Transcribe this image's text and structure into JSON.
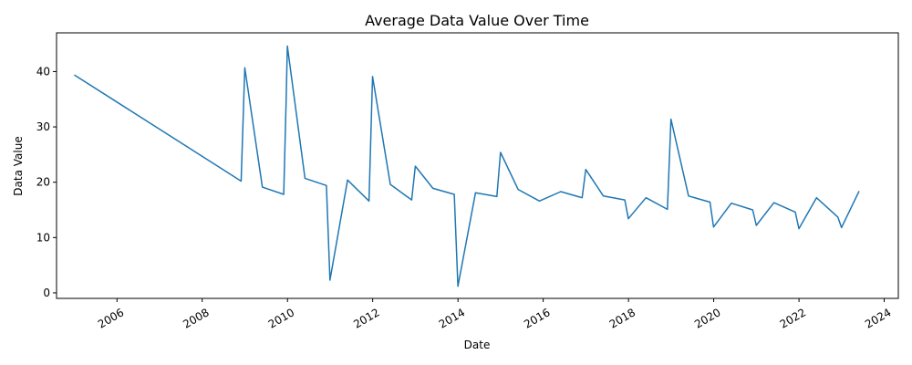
{
  "chart_data": {
    "type": "line",
    "title": "Average Data Value Over Time",
    "xlabel": "Date",
    "ylabel": "Data Value",
    "x_ticks": [
      "2006",
      "2008",
      "2010",
      "2012",
      "2014",
      "2016",
      "2018",
      "2020",
      "2022",
      "2024"
    ],
    "y_ticks": [
      0,
      10,
      20,
      30,
      40
    ],
    "xlim": [
      "2004-08-01",
      "2024-05-01"
    ],
    "ylim": [
      -1,
      47
    ],
    "grid": false,
    "line_color": "#1f77b4",
    "series": [
      {
        "x": [
          "2004-12-31",
          "2008-11-30",
          "2008-12-31",
          "2009-05-31",
          "2009-11-30",
          "2009-12-20",
          "2009-12-31",
          "2010-05-31",
          "2010-11-30",
          "2010-12-31",
          "2011-05-31",
          "2011-11-30",
          "2011-12-31",
          "2012-05-31",
          "2012-11-30",
          "2012-12-31",
          "2013-05-31",
          "2013-11-30",
          "2013-12-31",
          "2014-05-31",
          "2014-11-30",
          "2014-12-31",
          "2015-05-31",
          "2015-11-30",
          "2016-05-31",
          "2016-11-30",
          "2016-12-31",
          "2017-05-31",
          "2017-11-30",
          "2017-12-31",
          "2018-05-31",
          "2018-11-30",
          "2018-12-31",
          "2019-05-31",
          "2019-11-30",
          "2019-12-31",
          "2020-05-31",
          "2020-11-30",
          "2020-12-31",
          "2021-05-31",
          "2021-11-30",
          "2021-12-31",
          "2022-05-31",
          "2022-11-30",
          "2022-12-31",
          "2023-05-31"
        ],
        "y": [
          39.4,
          20.2,
          40.7,
          19.1,
          17.8,
          34.5,
          44.6,
          20.7,
          19.4,
          2.3,
          20.4,
          16.6,
          39.1,
          19.6,
          16.8,
          22.9,
          18.9,
          17.8,
          1.2,
          18.1,
          17.4,
          25.4,
          18.7,
          16.6,
          18.3,
          17.2,
          22.3,
          17.5,
          16.8,
          13.4,
          17.2,
          15.1,
          31.4,
          17.5,
          16.4,
          11.9,
          16.2,
          15.0,
          12.2,
          16.3,
          14.6,
          11.6,
          17.2,
          13.7,
          11.8,
          18.4
        ]
      }
    ]
  }
}
